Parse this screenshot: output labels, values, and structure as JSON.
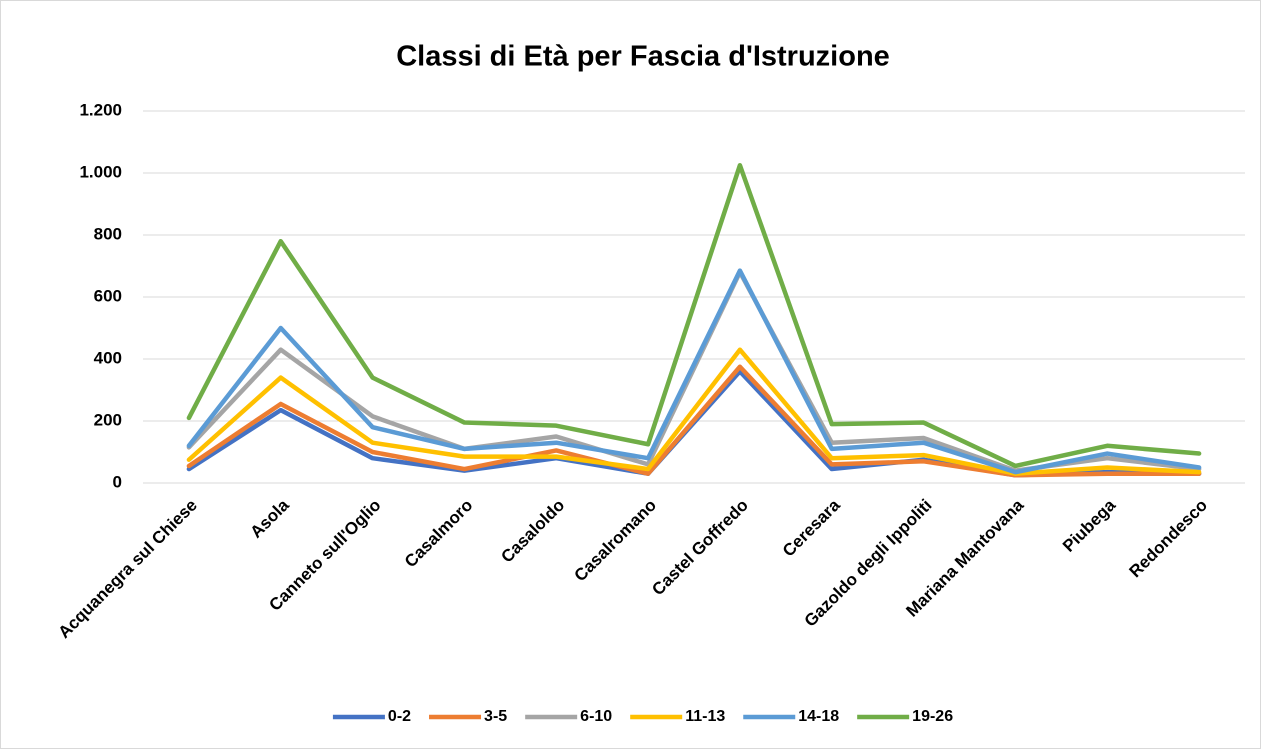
{
  "chart_data": {
    "type": "line",
    "title": "Classi di Età per Fascia d'Istruzione",
    "categories": [
      "Acquanegra sul Chiese",
      "Asola",
      "Canneto sull'Oglio",
      "Casalmoro",
      "Casaloldo",
      "Casalromano",
      "Castel Goffredo",
      "Ceresara",
      "Gazoldo degli Ippoliti",
      "Mariana Mantovana",
      "Piubega",
      "Redondesco"
    ],
    "series": [
      {
        "name": "0-2",
        "color": "#4472c4",
        "values": [
          45,
          235,
          80,
          40,
          80,
          30,
          360,
          45,
          75,
          25,
          35,
          30
        ]
      },
      {
        "name": "3-5",
        "color": "#ed7d31",
        "values": [
          55,
          255,
          100,
          45,
          105,
          30,
          375,
          60,
          70,
          25,
          30,
          30
        ]
      },
      {
        "name": "6-10",
        "color": "#a5a5a5",
        "values": [
          115,
          430,
          215,
          110,
          150,
          60,
          680,
          130,
          145,
          40,
          80,
          45
        ]
      },
      {
        "name": "11-13",
        "color": "#ffc000",
        "values": [
          75,
          340,
          130,
          85,
          85,
          45,
          430,
          80,
          90,
          30,
          50,
          35
        ]
      },
      {
        "name": "14-18",
        "color": "#5b9bd5",
        "values": [
          120,
          500,
          180,
          110,
          130,
          80,
          685,
          110,
          130,
          35,
          95,
          50
        ]
      },
      {
        "name": "19-26",
        "color": "#70ad47",
        "values": [
          210,
          780,
          340,
          195,
          185,
          125,
          1025,
          190,
          195,
          55,
          120,
          95
        ]
      }
    ],
    "ylim": [
      0,
      1200
    ],
    "yticks": [
      0,
      200,
      400,
      600,
      800,
      {
        "value": 1000,
        "label": "1.000"
      },
      {
        "value": 1200,
        "label": "1.200"
      }
    ],
    "grid": true,
    "legend": "bottom"
  }
}
